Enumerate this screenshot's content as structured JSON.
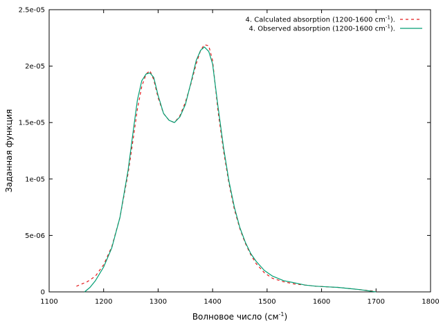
{
  "chart_data": {
    "type": "line",
    "title": "",
    "xlabel": "Волновое число (см",
    "xlabel_sup": "-1",
    "xlabel_suffix": ")",
    "ylabel": "Заданная функция",
    "xlim": [
      1100,
      1800
    ],
    "ylim": [
      0,
      2.5e-05
    ],
    "x_ticks": [
      1100,
      1200,
      1300,
      1400,
      1500,
      1600,
      1700,
      1800
    ],
    "x_tick_labels": [
      "1100",
      "1200",
      "1300",
      "1400",
      "1500",
      "1600",
      "1700",
      "1800"
    ],
    "y_ticks": [
      0,
      5e-06,
      1e-05,
      1.5e-05,
      2e-05,
      2.5e-05
    ],
    "y_tick_labels": [
      "0",
      "5e-06",
      "1e-05",
      "1.5e-05",
      "2e-05",
      "2.5e-05"
    ],
    "grid": false,
    "legend_position": "top-right",
    "series": [
      {
        "name": "4. Calculated absorption (1200-1600 cm",
        "name_sup": "-1",
        "name_suffix": ").",
        "color": "#e41a1c",
        "style": "dashed",
        "x": [
          1150,
          1170,
          1185,
          1200,
          1215,
          1230,
          1245,
          1255,
          1262,
          1270,
          1278,
          1285,
          1292,
          1300,
          1310,
          1320,
          1330,
          1340,
          1350,
          1360,
          1370,
          1378,
          1385,
          1393,
          1400,
          1410,
          1420,
          1430,
          1440,
          1450,
          1460,
          1470,
          1480,
          1495,
          1510,
          1530,
          1550,
          1570,
          1590,
          1610,
          1630,
          1650,
          1670,
          1700
        ],
        "y": [
          5e-07,
          9e-07,
          1.4e-06,
          2.4e-06,
          4e-06,
          6.6e-06,
          1.05e-05,
          1.38e-05,
          1.62e-05,
          1.82e-05,
          1.93e-05,
          1.96e-05,
          1.88e-05,
          1.72e-05,
          1.58e-05,
          1.52e-05,
          1.5e-05,
          1.56e-05,
          1.68e-05,
          1.84e-05,
          2.02e-05,
          2.14e-05,
          2.19e-05,
          2.18e-05,
          2.05e-05,
          1.6e-05,
          1.25e-05,
          9.6e-06,
          7.3e-06,
          5.6e-06,
          4.3e-06,
          3.3e-06,
          2.5e-06,
          1.7e-06,
          1.2e-06,
          9e-07,
          7e-07,
          6e-07,
          5e-07,
          4.5e-07,
          4e-07,
          3e-07,
          2e-07,
          5e-08
        ]
      },
      {
        "name": "4. Observed absorption (1200-1600 cm",
        "name_sup": "-1",
        "name_suffix": ").",
        "color": "#009e73",
        "style": "solid",
        "x": [
          1165,
          1175,
          1185,
          1200,
          1215,
          1230,
          1245,
          1255,
          1262,
          1270,
          1278,
          1285,
          1292,
          1300,
          1310,
          1320,
          1330,
          1340,
          1350,
          1360,
          1370,
          1378,
          1385,
          1393,
          1400,
          1410,
          1420,
          1430,
          1440,
          1450,
          1460,
          1470,
          1480,
          1495,
          1510,
          1530,
          1550,
          1570,
          1590,
          1610,
          1630,
          1650,
          1670,
          1700
        ],
        "y": [
          0,
          4e-07,
          1e-06,
          2.2e-06,
          3.9e-06,
          6.6e-06,
          1.08e-05,
          1.45e-05,
          1.7e-05,
          1.87e-05,
          1.93e-05,
          1.94e-05,
          1.9e-05,
          1.74e-05,
          1.58e-05,
          1.52e-05,
          1.5e-05,
          1.55e-05,
          1.66e-05,
          1.85e-05,
          2.05e-05,
          2.14e-05,
          2.17e-05,
          2.13e-05,
          2.02e-05,
          1.64e-05,
          1.28e-05,
          9.8e-06,
          7.5e-06,
          5.7e-06,
          4.4e-06,
          3.4e-06,
          2.7e-06,
          1.9e-06,
          1.4e-06,
          1e-06,
          8e-07,
          6e-07,
          5e-07,
          4.5e-07,
          4e-07,
          3e-07,
          2e-07,
          0
        ]
      }
    ]
  }
}
